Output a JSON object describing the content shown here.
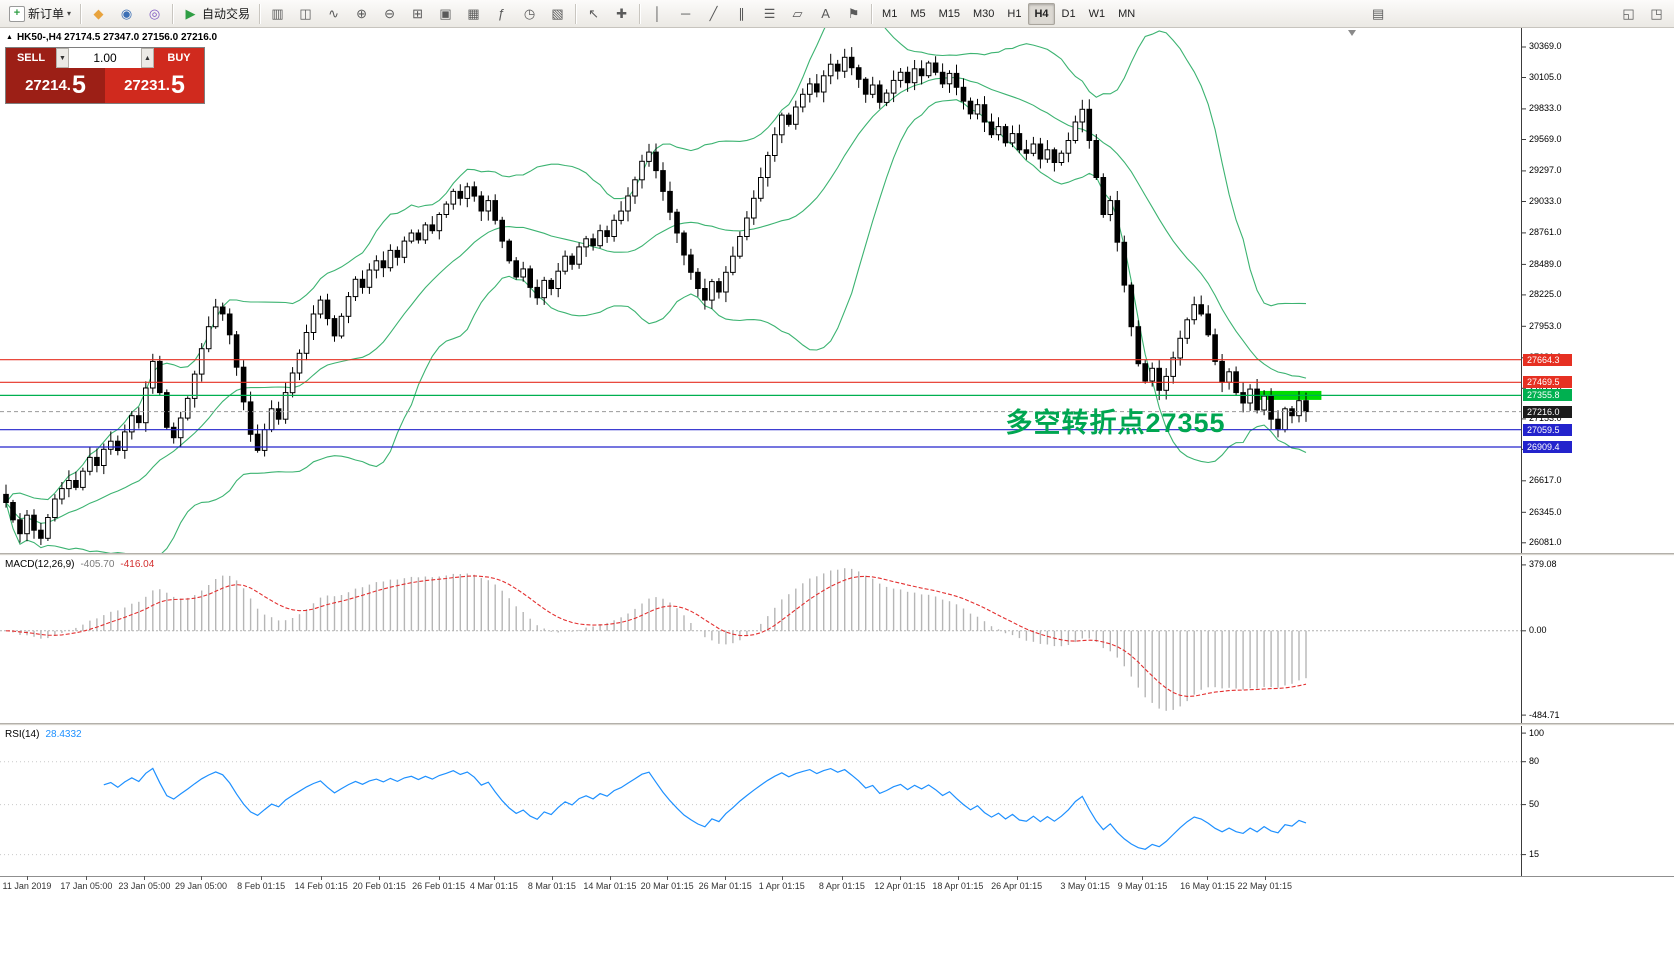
{
  "chart_header": {
    "marker": "▲",
    "text": "HK50-,H4 27174.5 27347.0 27156.0 27216.0"
  },
  "toolbar": {
    "new_order": {
      "icon": "+",
      "label": "新订单",
      "caret": "▾"
    },
    "quick_icons": [
      {
        "name": "market-icon",
        "glyph": "◆",
        "color": "#e8a33d"
      },
      {
        "name": "community-icon",
        "glyph": "◉",
        "color": "#3b6fb5"
      },
      {
        "name": "alerts-icon",
        "glyph": "◎",
        "color": "#7e57c2"
      }
    ],
    "autotrade": {
      "glyph": "▶",
      "color": "#2f9e44",
      "label": "自动交易"
    },
    "chart_icons": [
      {
        "name": "bar-chart-icon",
        "glyph": "▥"
      },
      {
        "name": "candlestick-chart-icon",
        "glyph": "◫"
      },
      {
        "name": "line-chart-icon",
        "glyph": "∿"
      },
      {
        "name": "zoom-in-icon",
        "glyph": "⊕"
      },
      {
        "name": "zoom-out-icon",
        "glyph": "⊖"
      },
      {
        "name": "tile-windows-icon",
        "glyph": "⊞"
      },
      {
        "name": "new-chart-icon",
        "glyph": "▣"
      },
      {
        "name": "profiles-icon",
        "glyph": "▦"
      },
      {
        "name": "indicators-icon",
        "glyph": "ƒ"
      },
      {
        "name": "period-clock-icon",
        "glyph": "◷"
      },
      {
        "name": "templates-icon",
        "glyph": "▧"
      }
    ],
    "pointer_icons": [
      {
        "name": "cursor-icon",
        "glyph": "↖"
      },
      {
        "name": "crosshair-icon",
        "glyph": "✚"
      }
    ],
    "draw_icons": [
      {
        "name": "vertical-line-icon",
        "glyph": "│"
      },
      {
        "name": "horizontal-line-icon",
        "glyph": "─"
      },
      {
        "name": "trendline-icon",
        "glyph": "╱"
      },
      {
        "name": "channel-icon",
        "glyph": "∥"
      },
      {
        "name": "fibonacci-icon",
        "glyph": "☰"
      },
      {
        "name": "shapes-icon",
        "glyph": "▱"
      },
      {
        "name": "text-icon",
        "glyph": "A"
      },
      {
        "name": "arrows-icon",
        "glyph": "⚑"
      }
    ],
    "timeframes": [
      "M1",
      "M5",
      "M15",
      "M30",
      "H1",
      "H4",
      "D1",
      "W1",
      "MN"
    ],
    "active_timeframe": "H4",
    "right_icons": [
      {
        "name": "print-icon",
        "glyph": "▤"
      }
    ],
    "far_right_icons": [
      {
        "name": "dock-icon",
        "glyph": "◱"
      },
      {
        "name": "expand-icon",
        "glyph": "◳"
      }
    ]
  },
  "trade_panel": {
    "sell_label": "SELL",
    "buy_label": "BUY",
    "volume": "1.00",
    "volume_down": "▼",
    "volume_up": "▲",
    "sell_price": {
      "main": "27214.",
      "pip": "5"
    },
    "buy_price": {
      "main": "27231.",
      "pip": "5"
    }
  },
  "chart_data": [
    {
      "type": "candlestick",
      "symbol": "HK50-",
      "timeframe": "H4",
      "ohlc": {
        "open": 27174.5,
        "high": 27347.0,
        "low": 27156.0,
        "close": 27216.0
      },
      "ylim": [
        25993,
        30533
      ],
      "y_ticks": [
        30369,
        30105,
        29833,
        29569,
        29297,
        29033,
        28761,
        28489,
        28225,
        27953,
        27681,
        27417,
        27153,
        26889,
        26617,
        26345,
        26081
      ],
      "closes": [
        26430,
        26280,
        26160,
        26320,
        26190,
        26120,
        26300,
        26460,
        26550,
        26620,
        26560,
        26700,
        26820,
        26750,
        26890,
        26960,
        26880,
        27040,
        27180,
        27120,
        27420,
        27650,
        27380,
        27080,
        26990,
        27160,
        27330,
        27540,
        27760,
        27950,
        28120,
        28060,
        27880,
        27600,
        27300,
        27020,
        26880,
        27060,
        27240,
        27150,
        27380,
        27550,
        27720,
        27900,
        28060,
        28180,
        28020,
        27870,
        28040,
        28210,
        28360,
        28290,
        28440,
        28520,
        28460,
        28610,
        28550,
        28690,
        28760,
        28700,
        28830,
        28780,
        28920,
        29010,
        29120,
        29060,
        29160,
        29080,
        28950,
        29040,
        28870,
        28690,
        28520,
        28380,
        28450,
        28290,
        28200,
        28350,
        28280,
        28430,
        28560,
        28490,
        28640,
        28710,
        28650,
        28780,
        28730,
        28870,
        28950,
        29080,
        29220,
        29380,
        29460,
        29300,
        29120,
        28940,
        28760,
        28570,
        28420,
        28280,
        28180,
        28340,
        28250,
        28420,
        28560,
        28730,
        28890,
        29060,
        29240,
        29430,
        29610,
        29780,
        29700,
        29850,
        29960,
        30050,
        29980,
        30120,
        30220,
        30160,
        30280,
        30190,
        30090,
        29960,
        30040,
        29890,
        29970,
        30080,
        30150,
        30060,
        30180,
        30120,
        30230,
        30150,
        30050,
        30140,
        30020,
        29900,
        29790,
        29870,
        29720,
        29610,
        29680,
        29540,
        29620,
        29480,
        29450,
        29530,
        29400,
        29480,
        29370,
        29450,
        29560,
        29720,
        29830,
        29560,
        29240,
        28920,
        29040,
        28680,
        28310,
        27950,
        27630,
        27480,
        27590,
        27400,
        27520,
        27680,
        27850,
        28010,
        28140,
        28060,
        27880,
        27650,
        27470,
        27560,
        27380,
        27290,
        27410,
        27230,
        27350,
        27150,
        27060,
        27240,
        27180,
        27310,
        27216
      ],
      "x_labels": [
        {
          "text": "11 Jan 2019",
          "i": 3
        },
        {
          "text": "17 Jan 05:00",
          "i": 11.5
        },
        {
          "text": "23 Jan 05:00",
          "i": 19.8
        },
        {
          "text": "29 Jan 05:00",
          "i": 27.9
        },
        {
          "text": "8 Feb 01:15",
          "i": 36.5
        },
        {
          "text": "14 Feb 01:15",
          "i": 45.1
        },
        {
          "text": "20 Feb 01:15",
          "i": 53.4
        },
        {
          "text": "26 Feb 01:15",
          "i": 61.9
        },
        {
          "text": "4 Mar 01:15",
          "i": 69.8
        },
        {
          "text": "8 Mar 01:15",
          "i": 78.1
        },
        {
          "text": "14 Mar 01:15",
          "i": 86.4
        },
        {
          "text": "20 Mar 01:15",
          "i": 94.6
        },
        {
          "text": "26 Mar 01:15",
          "i": 102.9
        },
        {
          "text": "1 Apr 01:15",
          "i": 111.0
        },
        {
          "text": "8 Apr 01:15",
          "i": 119.6
        },
        {
          "text": "12 Apr 01:15",
          "i": 127.9
        },
        {
          "text": "18 Apr 01:15",
          "i": 136.2
        },
        {
          "text": "26 Apr 01:15",
          "i": 144.6
        },
        {
          "text": "3 May 01:15",
          "i": 154.4
        },
        {
          "text": "9 May 01:15",
          "i": 162.6
        },
        {
          "text": "16 May 01:15",
          "i": 171.9
        },
        {
          "text": "22 May 01:15",
          "i": 180.1
        }
      ],
      "overlays": {
        "bollinger_period": 20,
        "bollinger_dev": 2,
        "color": "#3cb371"
      },
      "hlines": [
        {
          "value": 27664.3,
          "label": "27664.3",
          "color": "#e63022"
        },
        {
          "value": 27469.5,
          "label": "27469.5",
          "color": "#e63022"
        },
        {
          "value": 27355.8,
          "label": "27355.8",
          "color": "#00b050"
        },
        {
          "value": 27059.5,
          "label": "27059.5",
          "color": "#2323cc"
        },
        {
          "value": 26909.4,
          "label": "26909.4",
          "color": "#2323cc"
        }
      ],
      "current_price": {
        "value": 27216.0,
        "label": "27216.0",
        "bg": "#1c1c1c"
      },
      "highlight_box": {
        "price": 27355.8,
        "i_start": 178.6,
        "i_end": 188.2,
        "color": "#00dc00"
      },
      "annotation": {
        "text": "多空转折点27355",
        "i": 143,
        "price": 27169,
        "color": "#00a651"
      }
    },
    {
      "type": "macd",
      "label": "MACD(12,26,9)",
      "value_main": "-405.70",
      "value_signal": "-416.04",
      "fast": 12,
      "slow": 26,
      "signal": 9,
      "y_ticks": [
        379.08,
        0,
        -484.71
      ],
      "ylim": [
        430,
        -530
      ],
      "histogram_color": "#b6b6b6",
      "signal_color": "#e33030"
    },
    {
      "type": "rsi",
      "label": "RSI(14)",
      "value": "28.4332",
      "period": 14,
      "y_ticks": [
        100,
        80,
        50,
        15
      ],
      "levels": [
        80,
        50,
        15
      ],
      "ylim": [
        105,
        0
      ],
      "line_color": "#1e90ff"
    }
  ]
}
